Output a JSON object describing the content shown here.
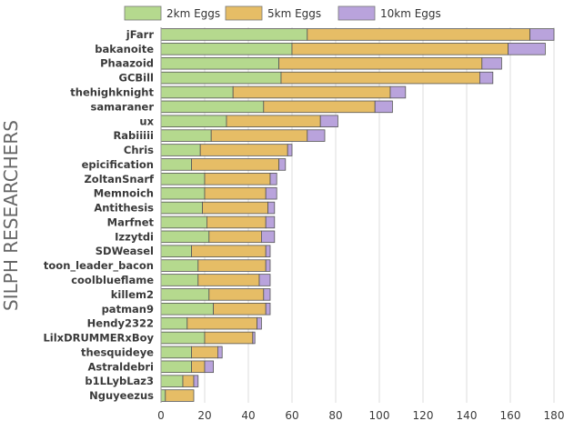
{
  "chart_data": {
    "type": "bar",
    "orientation": "horizontal",
    "stacked": true,
    "ylabel": "SILPH RESEARCHERS",
    "xlabel": "",
    "xlim": [
      0,
      185
    ],
    "xticks": [
      "0",
      "20",
      "40",
      "60",
      "80",
      "100",
      "120",
      "140",
      "160",
      "180"
    ],
    "legend_position": "top",
    "grid": "vertical",
    "categories": [
      "jFarr",
      "bakanoite",
      "Phaazoid",
      "GCBill",
      "thehighknight",
      "samaraner",
      "ux",
      "Rabiiiii",
      "Chris",
      "epicification",
      "ZoltanSnarf",
      "Memnoich",
      "Antithesis",
      "Marfnet",
      "Izzytdi",
      "SDWeasel",
      "toon_leader_bacon",
      "coolblueflame",
      "killem2",
      "patman9",
      "Hendy2322",
      "LilxDRUMMERxBoy",
      "thesquideye",
      "Astraldebri",
      "b1LLybLaz3",
      "Nguyeezus"
    ],
    "series": [
      {
        "name": "2km Eggs",
        "color": "#b5d98e",
        "values": [
          67,
          60,
          54,
          55,
          33,
          47,
          30,
          23,
          18,
          14,
          20,
          20,
          19,
          21,
          22,
          14,
          17,
          17,
          22,
          24,
          12,
          20,
          14,
          14,
          10,
          2
        ]
      },
      {
        "name": "5km Eggs",
        "color": "#e6bd66",
        "values": [
          102,
          99,
          93,
          91,
          72,
          51,
          43,
          44,
          40,
          40,
          30,
          28,
          30,
          27,
          24,
          34,
          31,
          28,
          25,
          24,
          32,
          22,
          12,
          6,
          5,
          13
        ]
      },
      {
        "name": "10km Eggs",
        "color": "#b9a3dc",
        "values": [
          11,
          17,
          9,
          6,
          7,
          8,
          8,
          8,
          2,
          3,
          3,
          5,
          3,
          4,
          6,
          2,
          2,
          5,
          3,
          2,
          2,
          1,
          2,
          4,
          2,
          0
        ]
      }
    ]
  }
}
